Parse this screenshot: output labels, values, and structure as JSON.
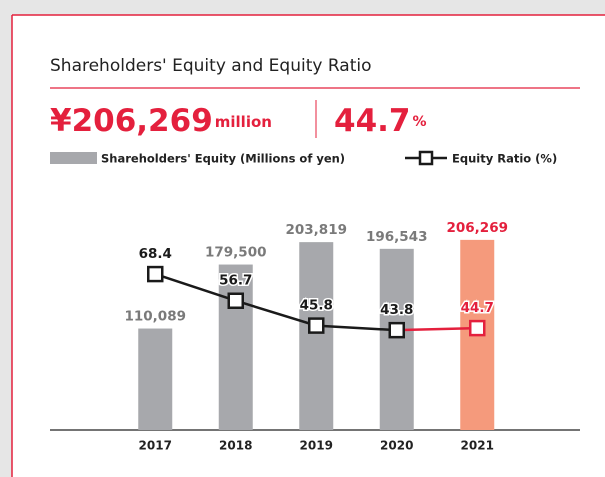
{
  "chart_data": {
    "type": "bar_line",
    "title": "Shareholders' Equity and Equity Ratio",
    "headline": {
      "amount": "¥206,269",
      "amount_unit": "million",
      "ratio": "44.7",
      "ratio_unit": "%"
    },
    "categories": [
      "2017",
      "2018",
      "2019",
      "2020",
      "2021"
    ],
    "series": [
      {
        "name": "Shareholders' Equity (Millions of yen)",
        "type": "bar",
        "color": "#a7a8ac",
        "values": [
          110089,
          179500,
          203819,
          196543,
          206269
        ],
        "value_labels": [
          "110,089",
          "179,500",
          "203,819",
          "196,543",
          "206,269"
        ]
      },
      {
        "name": "Equity Ratio (%)",
        "type": "line",
        "axis": "y2",
        "color": "#1a1a1a",
        "values": [
          68.4,
          56.7,
          45.8,
          43.8,
          44.7
        ]
      }
    ],
    "highlight_index": 4,
    "highlight_bar_color": "#f59a7c",
    "highlight_color": "#e4203d",
    "ylim": [
      0,
      230000
    ],
    "y2lim": [
      0,
      93
    ]
  }
}
